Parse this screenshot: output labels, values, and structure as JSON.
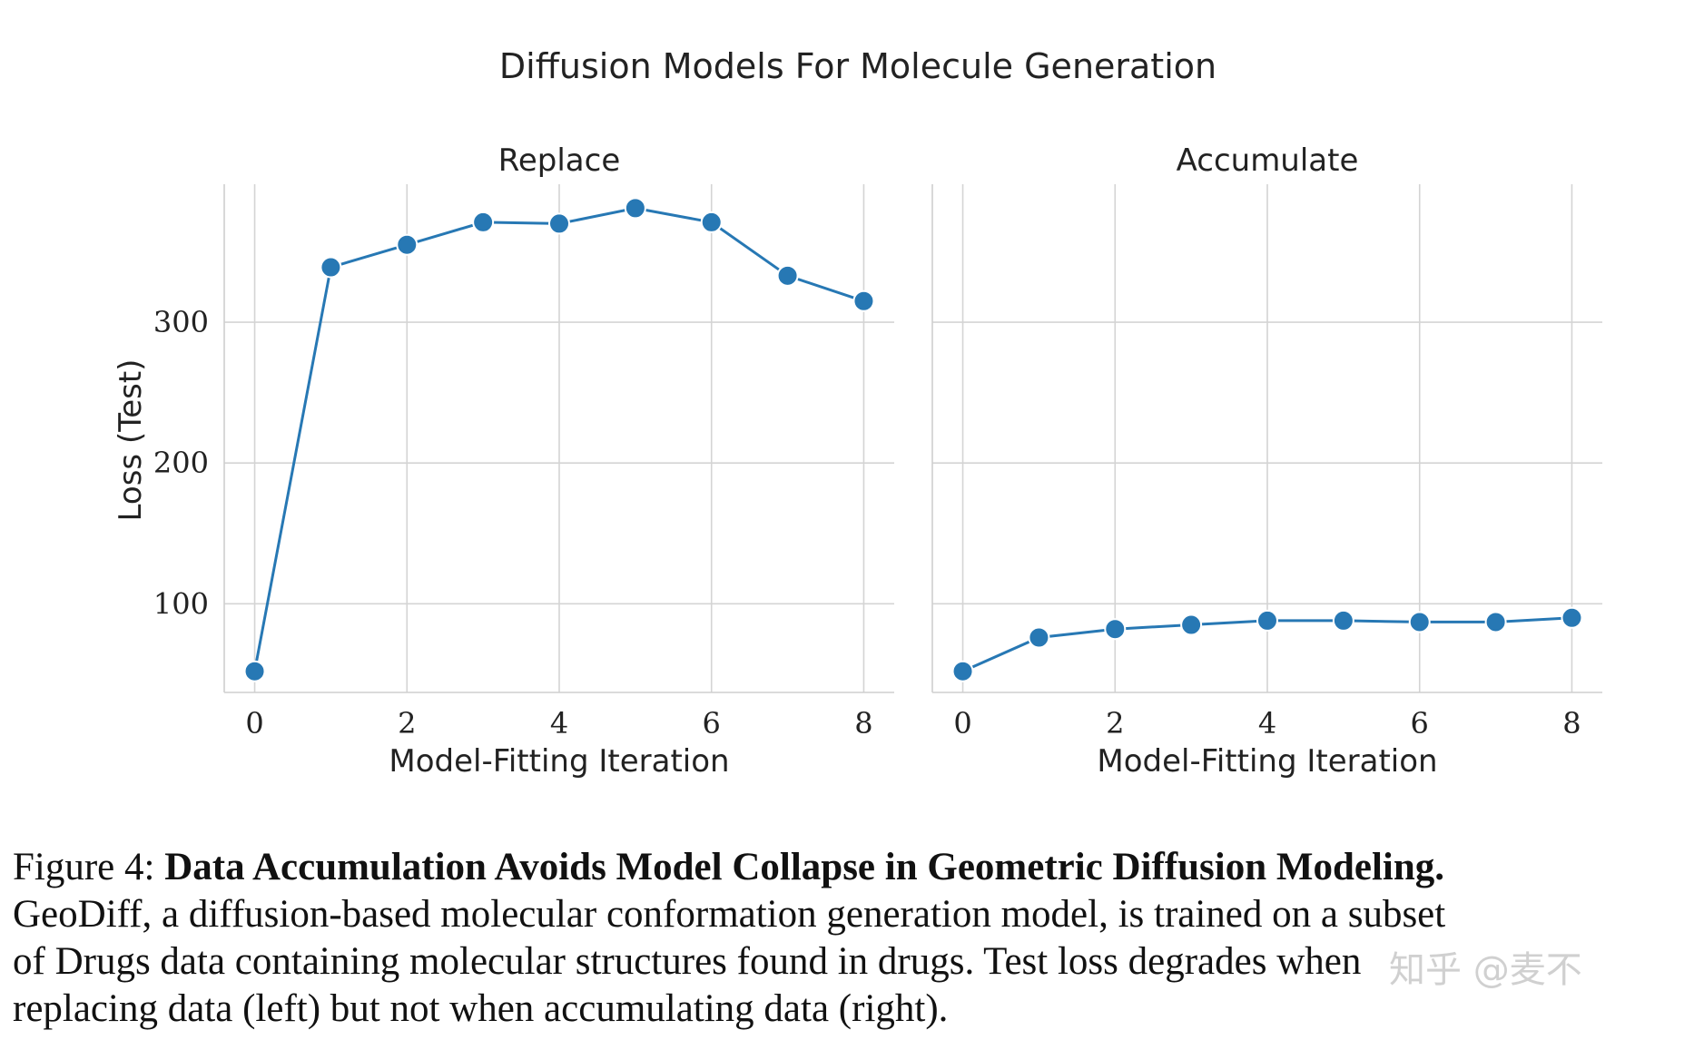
{
  "chart_data": {
    "title": "Diffusion Models For Molecule Generation",
    "type": "line",
    "ylabel": "Loss (Test)",
    "ylim": [
      37,
      398
    ],
    "yticks": [
      100,
      200,
      300
    ],
    "xlim": [
      -0.4,
      8.4
    ],
    "xticks": [
      0,
      2,
      4,
      6,
      8
    ],
    "grid": true,
    "color": "#2778b4",
    "panels": [
      {
        "title": "Replace",
        "xlabel": "Model-Fitting Iteration",
        "x": [
          0,
          1,
          2,
          3,
          4,
          5,
          6,
          7,
          8
        ],
        "values": [
          52,
          339,
          355,
          371,
          370,
          381,
          371,
          333,
          315
        ]
      },
      {
        "title": "Accumulate",
        "xlabel": "Model-Fitting Iteration",
        "x": [
          0,
          1,
          2,
          3,
          4,
          5,
          6,
          7,
          8
        ],
        "values": [
          52,
          76,
          82,
          85,
          88,
          88,
          87,
          87,
          90
        ]
      }
    ]
  },
  "caption": {
    "label": "Figure 4:",
    "bold_title": "Data Accumulation Avoids Model Collapse in Geometric Diffusion Modeling.",
    "line2": "GeoDiff, a diffusion-based molecular conformation generation model, is trained on a subset",
    "line3": "of Drugs data containing molecular structures found in drugs.  Test loss degrades when",
    "line4": "replacing data (left) but not when accumulating data (right)."
  },
  "watermark": "知乎 @麦不"
}
